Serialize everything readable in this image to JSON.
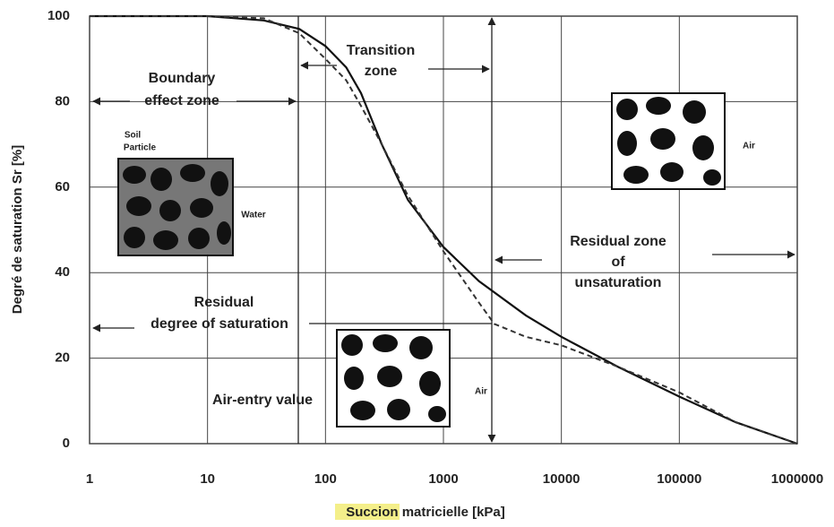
{
  "chart_data": {
    "type": "line",
    "xlabel": "Succion matricielle [kPa]",
    "ylabel": "Degré de saturation Sr [%]",
    "xscale": "log",
    "grid": true,
    "xlim": [
      1,
      1000000
    ],
    "xticks": [
      1,
      10,
      100,
      1000,
      10000,
      100000,
      1000000
    ],
    "ylim": [
      0,
      100
    ],
    "yticks": [
      0,
      20,
      40,
      60,
      80,
      100
    ],
    "series": [
      {
        "color": "#111111",
        "style": "solid",
        "x": [
          1,
          10,
          30,
          60,
          100,
          150,
          200,
          300,
          500,
          1000,
          2000,
          5000,
          10000,
          30000,
          100000,
          300000,
          1000000
        ],
        "values": [
          100,
          100,
          99,
          97,
          93,
          88,
          82,
          70,
          57,
          46,
          38,
          30,
          25,
          18,
          11,
          5,
          0
        ]
      },
      {
        "color": "#333333",
        "style": "dashed",
        "x": [
          1,
          10,
          30,
          60,
          100,
          150,
          200,
          300,
          500,
          1000,
          2000,
          2700,
          5000,
          10000,
          30000,
          100000,
          300000,
          1000000
        ],
        "values": [
          100,
          100,
          99.5,
          96,
          90,
          85,
          79,
          70,
          58,
          45,
          33,
          28,
          25,
          23,
          18,
          12,
          5,
          0
        ]
      }
    ],
    "annotations": [
      "Boundary",
      "effect zone",
      "Transition",
      "zone",
      "Residual zone",
      "of",
      "unsaturation",
      "Residual",
      "degree of saturation",
      "Air-entry value",
      "Soil",
      "Particle",
      "Water",
      "Air",
      "Air"
    ]
  }
}
